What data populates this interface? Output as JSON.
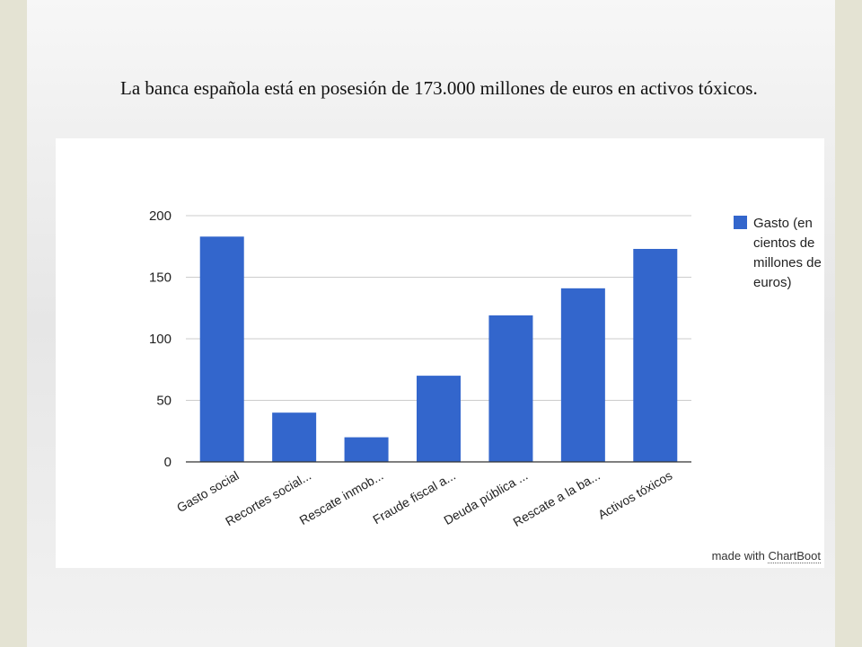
{
  "caption": "La banca española está en posesión de 173.000 millones de euros en activos tóxicos.",
  "credit": {
    "prefix": "made with ",
    "brand": "ChartBoot"
  },
  "colors": {
    "bar": "#3366cc",
    "grid": "#cccccc",
    "axis": "#333333",
    "text": "#222222"
  },
  "chart_data": {
    "type": "bar",
    "categories": [
      "Gasto social",
      "Recortes social...",
      "Rescate inmob...",
      "Fraude fiscal a...",
      "Deuda pública ...",
      "Rescate a la ba...",
      "Activos tóxicos"
    ],
    "series": [
      {
        "name": "Gasto (en cientos de millones de euros)",
        "values": [
          183,
          40,
          20,
          70,
          119,
          141,
          173
        ]
      }
    ],
    "legend_lines": [
      "Gasto (en",
      "cientos de",
      "millones de",
      "euros)"
    ],
    "yticks": [
      0,
      50,
      100,
      150,
      200
    ],
    "ylim": [
      0,
      200
    ],
    "grid": true,
    "legend_position": "right"
  }
}
